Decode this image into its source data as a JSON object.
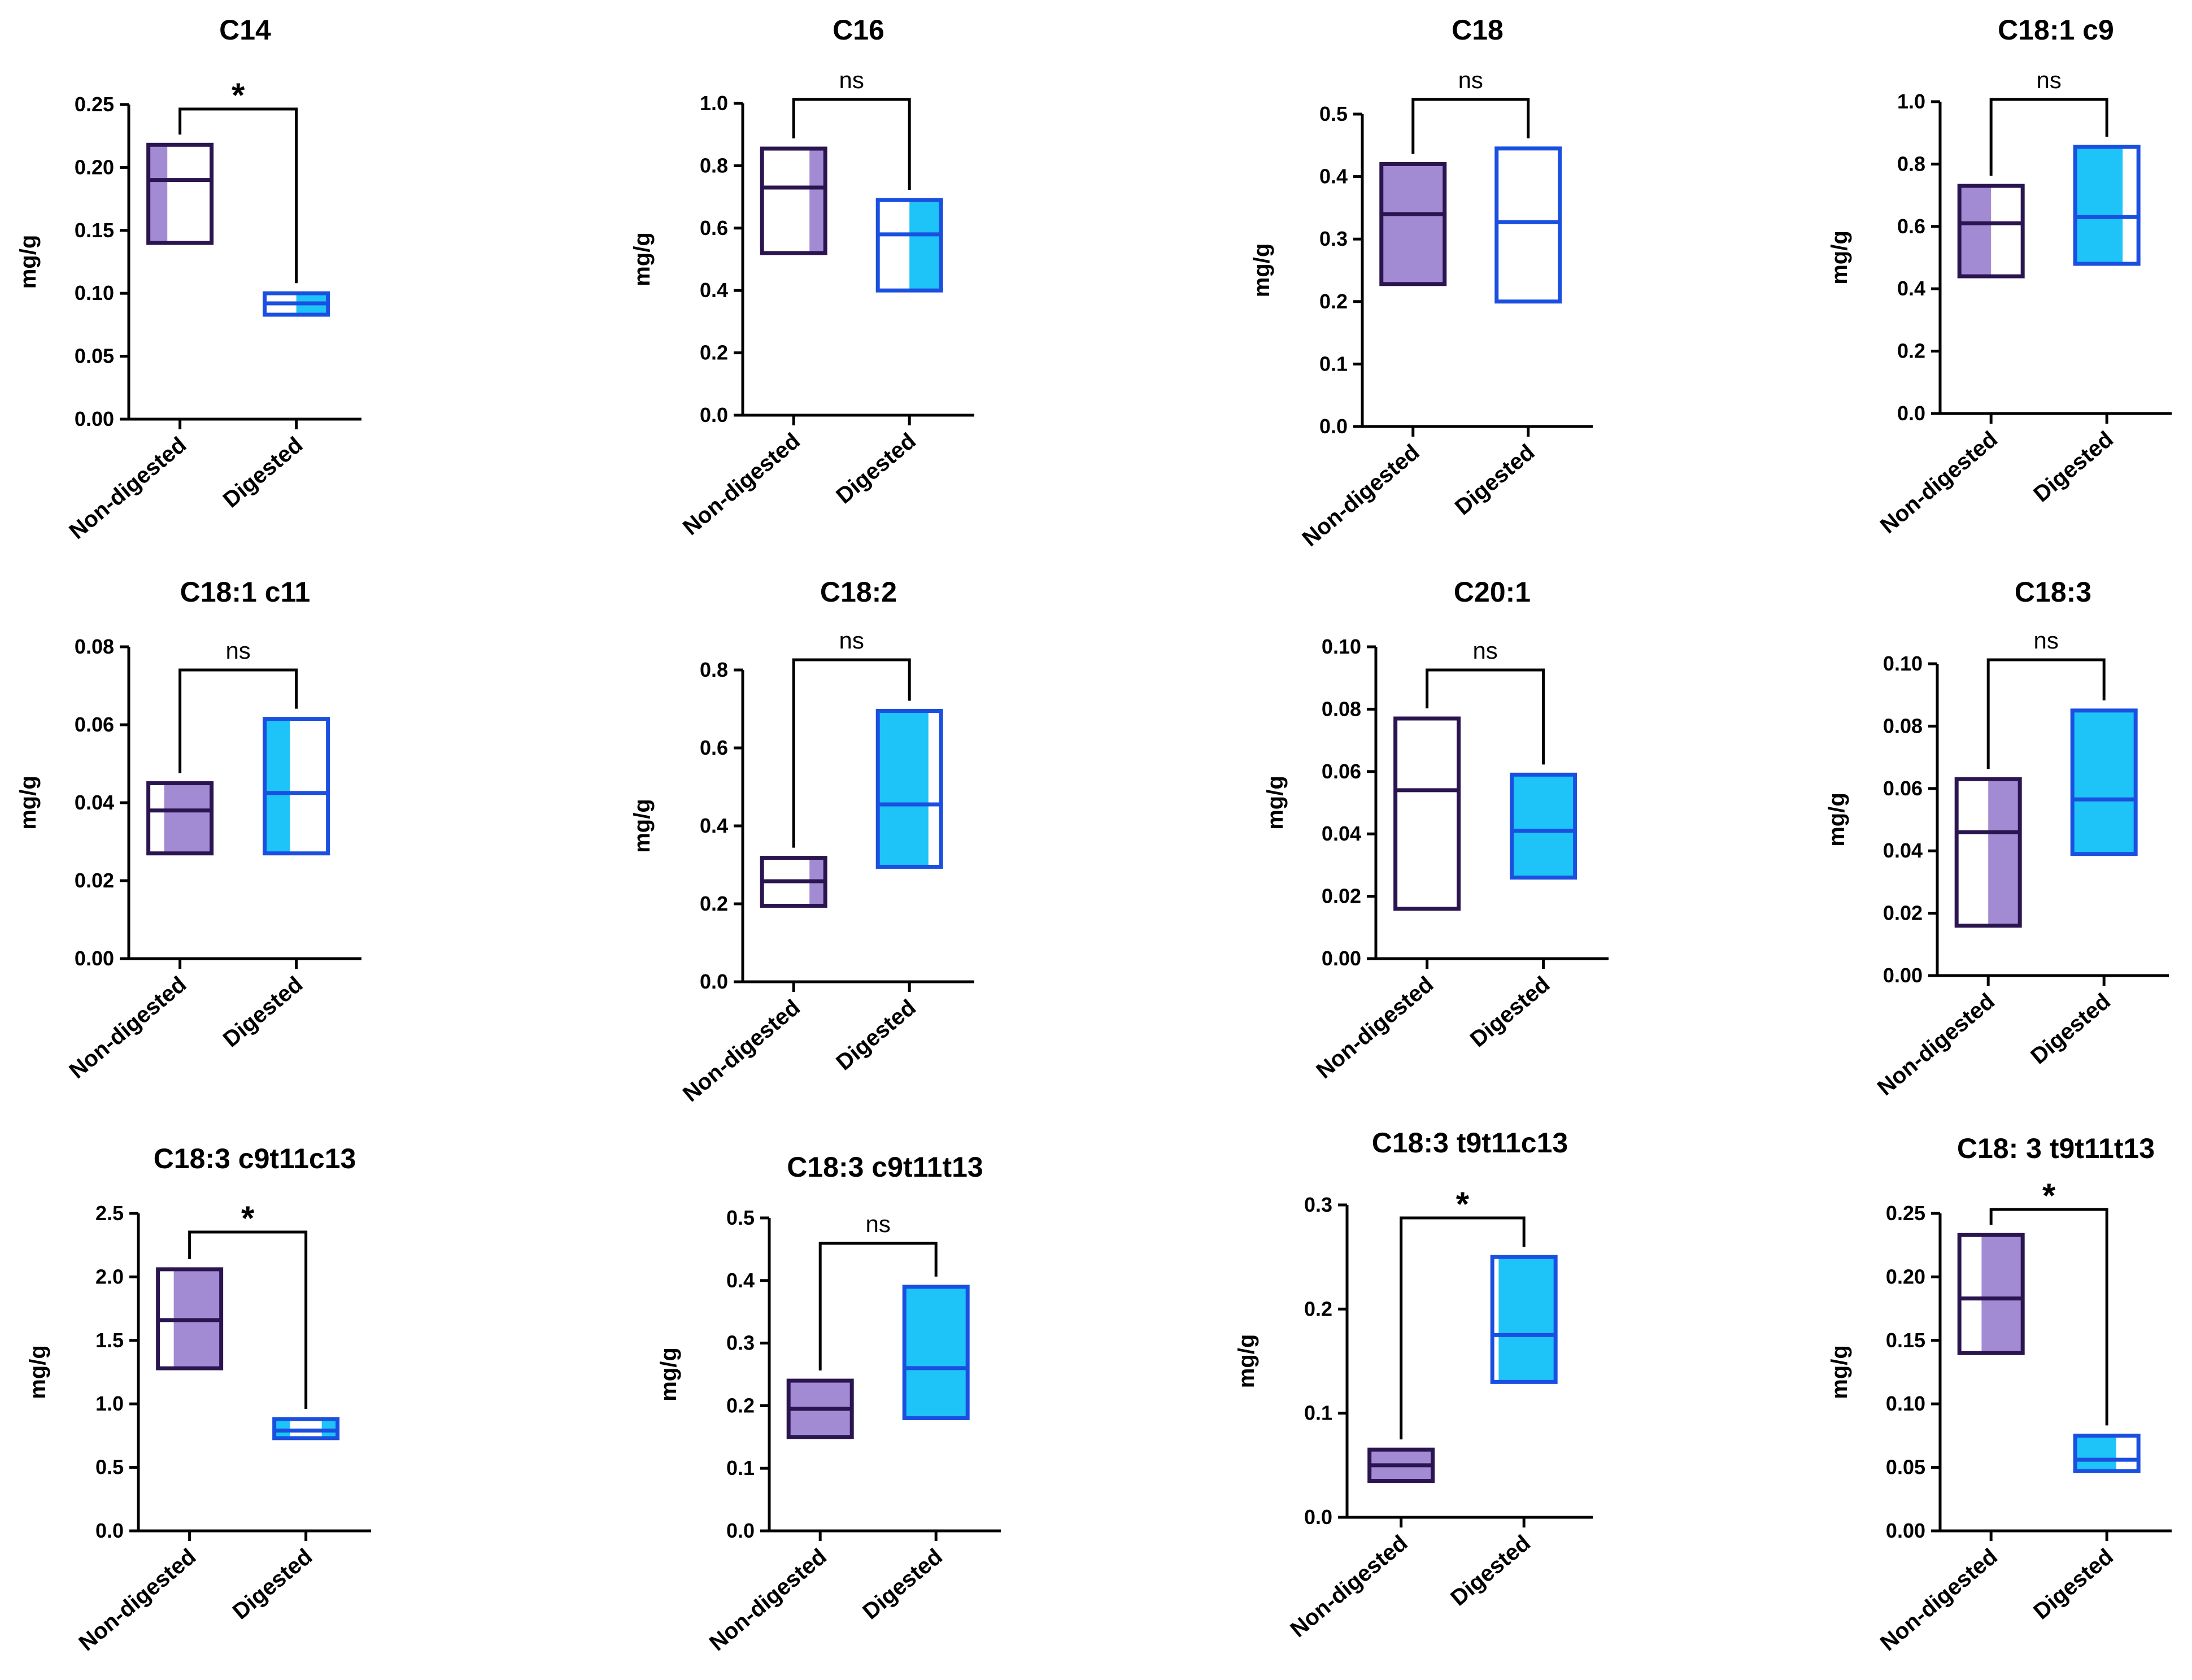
{
  "colors": {
    "nondigested_stroke": "#2b1550",
    "nondigested_fill": "#a38bd4",
    "digested_stroke": "#1a4fe0",
    "digested_fill": "#1ec3f8"
  },
  "chart_data": [
    {
      "type": "box",
      "title": "C14",
      "ylabel": "mg/g",
      "categories": [
        "Non-digested",
        "Digested"
      ],
      "ylim": [
        0,
        0.25
      ],
      "yticks": [
        "0.00",
        "0.05",
        "0.10",
        "0.15",
        "0.20",
        "0.25"
      ],
      "tickvals": [
        0,
        0.05,
        0.1,
        0.15,
        0.2,
        0.25
      ],
      "series": [
        {
          "name": "Non-digested",
          "min": 0.14,
          "median": 0.19,
          "max": 0.218,
          "fill": [
            [
              0,
              0.3
            ]
          ]
        },
        {
          "name": "Digested",
          "min": 0.083,
          "median": 0.092,
          "max": 0.1,
          "fill": [
            [
              0.5,
              1
            ]
          ]
        }
      ],
      "significance": "*"
    },
    {
      "type": "box",
      "title": "C16",
      "ylabel": "mg/g",
      "categories": [
        "Non-digested",
        "Digested"
      ],
      "ylim": [
        0,
        1.0
      ],
      "yticks": [
        "0.0",
        "0.2",
        "0.4",
        "0.6",
        "0.8",
        "1.0"
      ],
      "tickvals": [
        0,
        0.2,
        0.4,
        0.6,
        0.8,
        1.0
      ],
      "series": [
        {
          "name": "Non-digested",
          "min": 0.52,
          "median": 0.73,
          "max": 0.855,
          "fill": [
            [
              0.75,
              1
            ]
          ]
        },
        {
          "name": "Digested",
          "min": 0.4,
          "median": 0.58,
          "max": 0.69,
          "fill": [
            [
              0.5,
              1
            ]
          ]
        }
      ],
      "significance": "ns"
    },
    {
      "type": "box",
      "title": "C18",
      "ylabel": "mg/g",
      "categories": [
        "Non-digested",
        "Digested"
      ],
      "ylim": [
        0,
        0.5
      ],
      "yticks": [
        "0.0",
        "0.1",
        "0.2",
        "0.3",
        "0.4",
        "0.5"
      ],
      "tickvals": [
        0,
        0.1,
        0.2,
        0.3,
        0.4,
        0.5
      ],
      "series": [
        {
          "name": "Non-digested",
          "min": 0.228,
          "median": 0.34,
          "max": 0.42,
          "fill": [
            [
              0,
              1
            ]
          ]
        },
        {
          "name": "Digested",
          "min": 0.2,
          "median": 0.327,
          "max": 0.445,
          "fill": []
        }
      ],
      "significance": "ns"
    },
    {
      "type": "box",
      "title": "C18:1 c9",
      "ylabel": "mg/g",
      "categories": [
        "Non-digested",
        "Digested"
      ],
      "ylim": [
        0,
        1.0
      ],
      "yticks": [
        "0.0",
        "0.2",
        "0.4",
        "0.6",
        "0.8",
        "1.0"
      ],
      "tickvals": [
        0,
        0.2,
        0.4,
        0.6,
        0.8,
        1.0
      ],
      "series": [
        {
          "name": "Non-digested",
          "min": 0.44,
          "median": 0.61,
          "max": 0.73,
          "fill": [
            [
              0,
              0.5
            ]
          ]
        },
        {
          "name": "Digested",
          "min": 0.48,
          "median": 0.63,
          "max": 0.855,
          "fill": [
            [
              0,
              0.75
            ]
          ]
        }
      ],
      "significance": "ns"
    },
    {
      "type": "box",
      "title": "C18:1 c11",
      "ylabel": "mg/g",
      "categories": [
        "Non-digested",
        "Digested"
      ],
      "ylim": [
        0,
        0.08
      ],
      "yticks": [
        "0.00",
        "0.02",
        "0.04",
        "0.06",
        "0.08"
      ],
      "tickvals": [
        0,
        0.02,
        0.04,
        0.06,
        0.08
      ],
      "series": [
        {
          "name": "Non-digested",
          "min": 0.027,
          "median": 0.038,
          "max": 0.045,
          "fill": [
            [
              0.25,
              1
            ]
          ]
        },
        {
          "name": "Digested",
          "min": 0.027,
          "median": 0.0425,
          "max": 0.0615,
          "fill": [
            [
              0,
              0.4
            ]
          ]
        }
      ],
      "significance": "ns"
    },
    {
      "type": "box",
      "title": "C18:2",
      "ylabel": "mg/g",
      "categories": [
        "Non-digested",
        "Digested"
      ],
      "ylim": [
        0,
        0.8
      ],
      "yticks": [
        "0.0",
        "0.2",
        "0.4",
        "0.6",
        "0.8"
      ],
      "tickvals": [
        0,
        0.2,
        0.4,
        0.6,
        0.8
      ],
      "series": [
        {
          "name": "Non-digested",
          "min": 0.195,
          "median": 0.258,
          "max": 0.318,
          "fill": [
            [
              0.75,
              1
            ]
          ]
        },
        {
          "name": "Digested",
          "min": 0.295,
          "median": 0.455,
          "max": 0.695,
          "fill": [
            [
              0,
              0.8
            ]
          ]
        }
      ],
      "significance": "ns"
    },
    {
      "type": "box",
      "title": "C20:1",
      "ylabel": "mg/g",
      "categories": [
        "Non-digested",
        "Digested"
      ],
      "ylim": [
        0,
        0.1
      ],
      "yticks": [
        "0.00",
        "0.02",
        "0.04",
        "0.06",
        "0.08",
        "0.10"
      ],
      "tickvals": [
        0,
        0.02,
        0.04,
        0.06,
        0.08,
        0.1
      ],
      "series": [
        {
          "name": "Non-digested",
          "min": 0.016,
          "median": 0.054,
          "max": 0.077,
          "fill": []
        },
        {
          "name": "Digested",
          "min": 0.026,
          "median": 0.041,
          "max": 0.059,
          "fill": [
            [
              0,
              1
            ]
          ]
        }
      ],
      "significance": "ns"
    },
    {
      "type": "box",
      "title": "C18:3",
      "ylabel": "mg/g",
      "categories": [
        "Non-digested",
        "Digested"
      ],
      "ylim": [
        0,
        0.1
      ],
      "yticks": [
        "0.00",
        "0.02",
        "0.04",
        "0.06",
        "0.08",
        "0.10"
      ],
      "tickvals": [
        0,
        0.02,
        0.04,
        0.06,
        0.08,
        0.1
      ],
      "series": [
        {
          "name": "Non-digested",
          "min": 0.016,
          "median": 0.046,
          "max": 0.063,
          "fill": [
            [
              0.5,
              1
            ]
          ]
        },
        {
          "name": "Digested",
          "min": 0.039,
          "median": 0.0565,
          "max": 0.085,
          "fill": [
            [
              0,
              1
            ]
          ]
        }
      ],
      "significance": "ns"
    },
    {
      "type": "box",
      "title": "C18:3 c9t11c13",
      "ylabel": "mg/g",
      "categories": [
        "Non-digested",
        "Digested"
      ],
      "ylim": [
        0,
        2.5
      ],
      "yticks": [
        "0.0",
        "0.5",
        "1.0",
        "1.5",
        "2.0",
        "2.5"
      ],
      "tickvals": [
        0,
        0.5,
        1.0,
        1.5,
        2.0,
        2.5
      ],
      "series": [
        {
          "name": "Non-digested",
          "min": 1.28,
          "median": 1.66,
          "max": 2.06,
          "fill": [
            [
              0.25,
              1
            ]
          ]
        },
        {
          "name": "Digested",
          "min": 0.73,
          "median": 0.79,
          "max": 0.88,
          "fill": [
            [
              0,
              0.25
            ],
            [
              0.75,
              1
            ]
          ]
        }
      ],
      "significance": "*"
    },
    {
      "type": "box",
      "title": "C18:3 c9t11t13",
      "ylabel": "mg/g",
      "categories": [
        "Non-digested",
        "Digested"
      ],
      "ylim": [
        0,
        0.5
      ],
      "yticks": [
        "0.0",
        "0.1",
        "0.2",
        "0.3",
        "0.4",
        "0.5"
      ],
      "tickvals": [
        0,
        0.1,
        0.2,
        0.3,
        0.4,
        0.5
      ],
      "series": [
        {
          "name": "Non-digested",
          "min": 0.15,
          "median": 0.195,
          "max": 0.24,
          "fill": [
            [
              0,
              1
            ]
          ]
        },
        {
          "name": "Digested",
          "min": 0.18,
          "median": 0.26,
          "max": 0.39,
          "fill": [
            [
              0,
              1
            ]
          ]
        }
      ],
      "significance": "ns"
    },
    {
      "type": "box",
      "title": "C18:3 t9t11c13",
      "ylabel": "mg/g",
      "categories": [
        "Non-digested",
        "Digested"
      ],
      "ylim": [
        0,
        0.3
      ],
      "yticks": [
        "0.0",
        "0.1",
        "0.2",
        "0.3"
      ],
      "tickvals": [
        0,
        0.1,
        0.2,
        0.3
      ],
      "series": [
        {
          "name": "Non-digested",
          "min": 0.035,
          "median": 0.05,
          "max": 0.065,
          "fill": [
            [
              0,
              1
            ]
          ]
        },
        {
          "name": "Digested",
          "min": 0.13,
          "median": 0.175,
          "max": 0.25,
          "fill": [
            [
              0.1,
              1
            ]
          ]
        }
      ],
      "significance": "*"
    },
    {
      "type": "box",
      "title": "C18: 3 t9t11t13",
      "ylabel": "mg/g",
      "categories": [
        "Non-digested",
        "Digested"
      ],
      "ylim": [
        0,
        0.25
      ],
      "yticks": [
        "0.00",
        "0.05",
        "0.10",
        "0.15",
        "0.20",
        "0.25"
      ],
      "tickvals": [
        0,
        0.05,
        0.1,
        0.15,
        0.2,
        0.25
      ],
      "series": [
        {
          "name": "Non-digested",
          "min": 0.14,
          "median": 0.183,
          "max": 0.233,
          "fill": [
            [
              0.35,
              1
            ]
          ]
        },
        {
          "name": "Digested",
          "min": 0.047,
          "median": 0.056,
          "max": 0.075,
          "fill": [
            [
              0,
              0.65
            ]
          ]
        }
      ],
      "significance": "*"
    }
  ]
}
